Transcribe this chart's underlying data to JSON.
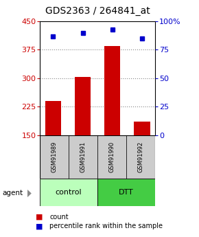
{
  "title": "GDS2363 / 264841_at",
  "samples": [
    "GSM91989",
    "GSM91991",
    "GSM91990",
    "GSM91992"
  ],
  "bar_values": [
    240,
    303,
    385,
    185
  ],
  "percentile_values": [
    87,
    90,
    93,
    85
  ],
  "ylim_left": [
    150,
    450
  ],
  "ylim_right": [
    0,
    100
  ],
  "yticks_left": [
    150,
    225,
    300,
    375,
    450
  ],
  "yticks_right": [
    0,
    25,
    50,
    75,
    100
  ],
  "ytick_right_labels": [
    "0",
    "25",
    "50",
    "75",
    "100%"
  ],
  "bar_color": "#cc0000",
  "dot_color": "#0000cc",
  "groups": [
    {
      "label": "control",
      "span": [
        0,
        1
      ],
      "color": "#bbffbb"
    },
    {
      "label": "DTT",
      "span": [
        2,
        3
      ],
      "color": "#44cc44"
    }
  ],
  "sample_box_color": "#cccccc",
  "legend_bar_label": "count",
  "legend_dot_label": "percentile rank within the sample",
  "grid_ticks": [
    225,
    300,
    375
  ],
  "grid_color": "#888888",
  "title_fontsize": 10,
  "tick_fontsize": 8,
  "sample_fontsize": 6,
  "group_fontsize": 8,
  "legend_fontsize": 7,
  "agent_label": "agent",
  "bar_width": 0.55
}
